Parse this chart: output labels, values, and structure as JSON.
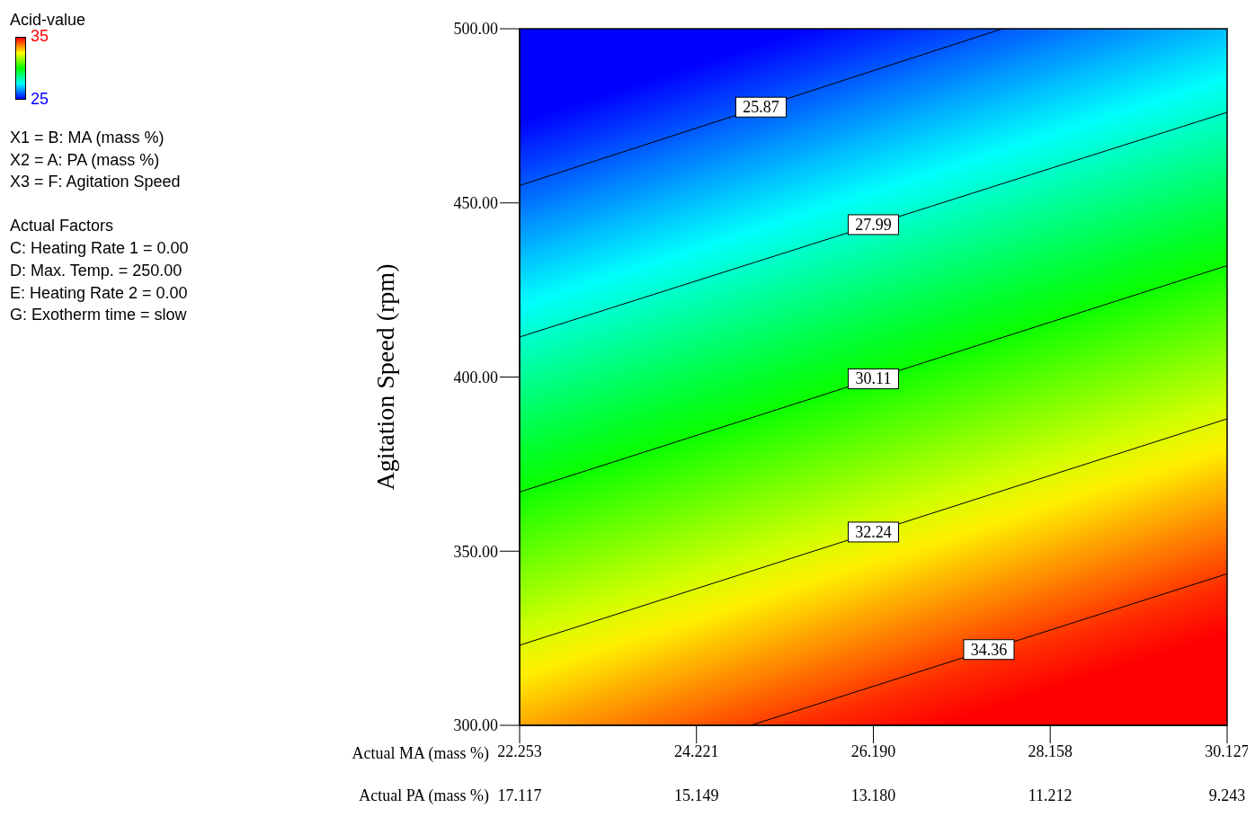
{
  "chart_data": {
    "type": "line",
    "xlabel": "Actual MA (mass %)",
    "x2label": "Actual PA (mass %)",
    "ylabel": "Agitation Speed (rpm)",
    "clabel": "Acid-value",
    "clim": [
      25,
      35
    ],
    "cticks": [
      25,
      35
    ],
    "xlim": [
      22.253,
      30.127
    ],
    "xticks": [
      22.253,
      24.221,
      {
        "value": 26.19,
        "label": "26.190"
      },
      28.158,
      30.127
    ],
    "x2lim": [
      17.117,
      9.243
    ],
    "x2ticks": [
      17.117,
      15.149,
      {
        "value": 13.18,
        "label": "13.180"
      },
      11.212,
      9.243
    ],
    "ylim": [
      300,
      500
    ],
    "yticks": [
      {
        "value": 300,
        "label": "300.00"
      },
      {
        "value": 350,
        "label": "350.00"
      },
      {
        "value": 400,
        "label": "400.00"
      },
      {
        "value": 450,
        "label": "450.00"
      },
      {
        "value": 500,
        "label": "500.00"
      }
    ],
    "series": [
      {
        "name": "25.87",
        "color": "#000000",
        "x": [
          22.253,
          27.626
        ],
        "values": [
          455,
          500
        ]
      },
      {
        "name": "27.99",
        "color": "#000000",
        "x": [
          22.253,
          30.127
        ],
        "values": [
          411.5,
          476
        ]
      },
      {
        "name": "30.11",
        "color": "#000000",
        "x": [
          22.253,
          30.127
        ],
        "values": [
          367,
          432
        ]
      },
      {
        "name": "32.24",
        "color": "#000000",
        "x": [
          22.253,
          30.127
        ],
        "values": [
          323,
          388
        ]
      },
      {
        "name": "34.36",
        "color": "#000000",
        "x": [
          24.824,
          30.127
        ],
        "values": [
          300,
          343.5
        ]
      }
    ],
    "annotations": [
      "X1 = B: MA (mass %)",
      "X2 = A: PA (mass %)",
      "X3 = F: Agitation Speed",
      "Actual Factors",
      "C: Heating Rate 1 = 0.00",
      "D: Max. Temp. = 250.00",
      "E: Heating Rate 2 = 0.00",
      "G: Exotherm time = slow"
    ],
    "grid": false
  }
}
